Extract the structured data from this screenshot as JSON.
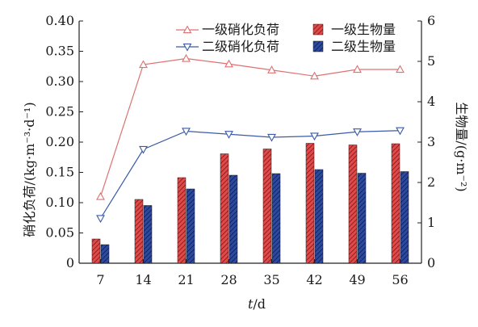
{
  "chart_data": {
    "type": "bar",
    "categories": [
      "7",
      "14",
      "21",
      "28",
      "35",
      "42",
      "49",
      "56"
    ],
    "xlabel": "t/d",
    "xlabel_italic": "t",
    "xlabel_rest": "/d",
    "ylabel_left": "硝化负荷/(kg·m⁻³·d⁻¹)",
    "ylabel_right": "生物量/(g·m⁻²)",
    "ylim_left": [
      0,
      0.4
    ],
    "ylim_right": [
      0,
      6
    ],
    "yticks_left": [
      "0",
      "0.05",
      "0.10",
      "0.15",
      "0.20",
      "0.25",
      "0.30",
      "0.35",
      "0.40"
    ],
    "yticks_right": [
      "0",
      "1",
      "2",
      "3",
      "4",
      "5",
      "6"
    ],
    "grid": false,
    "legend_position": "top",
    "line_series": [
      {
        "name": "一级硝化负荷",
        "axis": "left",
        "marker": "triangle-up",
        "color": "#e07070",
        "values": [
          0.11,
          0.328,
          0.338,
          0.329,
          0.319,
          0.309,
          0.32,
          0.32
        ]
      },
      {
        "name": "二级硝化负荷",
        "axis": "left",
        "marker": "triangle-down",
        "color": "#3a5aa8",
        "values": [
          0.074,
          0.188,
          0.218,
          0.213,
          0.208,
          0.21,
          0.217,
          0.219
        ]
      }
    ],
    "bar_series": [
      {
        "name": "一级生物量",
        "axis": "right",
        "color": "#d83838",
        "values": [
          0.6,
          1.58,
          2.12,
          2.71,
          2.83,
          2.97,
          2.93,
          2.96
        ]
      },
      {
        "name": "二级生物量",
        "axis": "right",
        "color": "#1e3a8c",
        "values": [
          0.46,
          1.43,
          1.84,
          2.18,
          2.22,
          2.32,
          2.23,
          2.27
        ]
      }
    ]
  }
}
